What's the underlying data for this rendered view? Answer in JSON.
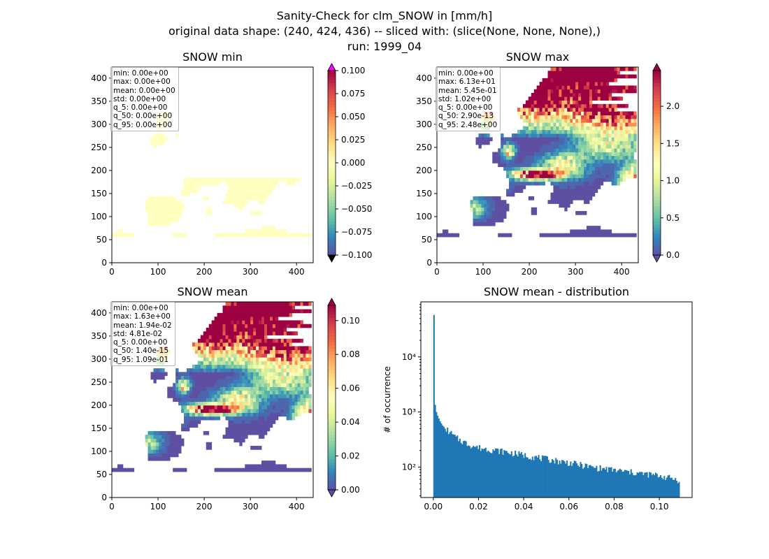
{
  "figure": {
    "suptitle_line1": "Sanity-Check for clm_SNOW in [mm/h]",
    "suptitle_line2": "original data shape: (240, 424, 436) -- sliced with: (slice(None, None, None),)",
    "suptitle_line3": "run: 1999_04"
  },
  "colors": {
    "spectral": [
      "#9e0142",
      "#d53e4f",
      "#f46d43",
      "#fdae61",
      "#fee08b",
      "#ffffbf",
      "#e6f598",
      "#abdda4",
      "#66c2a5",
      "#3288bd",
      "#5e4fa2"
    ],
    "over_min_plot": "#ff00ff",
    "under_min_plot": "#000000",
    "hist_bar": "#1f77b4"
  },
  "chart_data": [
    {
      "type": "heatmap",
      "title": "SNOW min",
      "xlim": [
        0,
        436
      ],
      "ylim": [
        0,
        424
      ],
      "xticks": [
        "0",
        "100",
        "200",
        "300",
        "400"
      ],
      "yticks": [
        "0",
        "50",
        "100",
        "150",
        "200",
        "250",
        "300",
        "350",
        "400"
      ],
      "field": "zero",
      "colorbar": {
        "vmin": -0.1,
        "vmax": 0.1,
        "extend": "both",
        "ticks": [
          "0.100",
          "0.075",
          "0.050",
          "0.025",
          "0.000",
          "−0.025",
          "−0.050",
          "−0.075",
          "−0.100"
        ]
      },
      "stats": [
        "min: 0.00e+00",
        "max: 0.00e+00",
        "mean: 0.00e+00",
        "std: 0.00e+00",
        "q_5: 0.00e+00",
        "q_50: 0.00e+00",
        "q_95: 0.00e+00"
      ]
    },
    {
      "type": "heatmap",
      "title": "SNOW max",
      "xlim": [
        0,
        436
      ],
      "ylim": [
        0,
        424
      ],
      "xticks": [
        "0",
        "100",
        "200",
        "300",
        "400"
      ],
      "yticks": [
        "0",
        "50",
        "100",
        "150",
        "200",
        "250",
        "300",
        "350",
        "400"
      ],
      "field": "max",
      "colorbar": {
        "vmin": 0.0,
        "vmax": 2.48,
        "extend": "both",
        "ticks": [
          "2.0",
          "1.5",
          "1.0",
          "0.5",
          "0.0"
        ]
      },
      "stats": [
        "min: 0.00e+00",
        "max: 6.13e+01",
        "mean: 5.45e-01",
        "std: 1.02e+00",
        "q_5: 0.00e+00",
        "q_50: 2.90e-13",
        "q_95: 2.48e+00"
      ]
    },
    {
      "type": "heatmap",
      "title": "SNOW mean",
      "xlim": [
        0,
        436
      ],
      "ylim": [
        0,
        424
      ],
      "xticks": [
        "0",
        "100",
        "200",
        "300",
        "400"
      ],
      "yticks": [
        "0",
        "50",
        "100",
        "150",
        "200",
        "250",
        "300",
        "350",
        "400"
      ],
      "field": "mean",
      "colorbar": {
        "vmin": 0.0,
        "vmax": 0.109,
        "extend": "both",
        "ticks": [
          "0.10",
          "0.08",
          "0.06",
          "0.04",
          "0.02",
          "0.00"
        ]
      },
      "stats": [
        "min: 0.00e+00",
        "max: 1.63e+00",
        "mean: 1.94e-02",
        "std: 4.81e-02",
        "q_5: 0.00e+00",
        "q_50: 1.40e-15",
        "q_95: 1.09e-01"
      ]
    },
    {
      "type": "bar",
      "title": "SNOW mean - distribution",
      "ylabel": "# of occurrence",
      "xlim": [
        -0.0055,
        0.1145
      ],
      "ylog": true,
      "ylim": [
        28,
        100000
      ],
      "xticks": [
        "0.00",
        "0.02",
        "0.04",
        "0.06",
        "0.08",
        "0.10"
      ],
      "yticks_major": [
        "10²",
        "10³",
        "10⁴"
      ],
      "bin_range": [
        0.0,
        0.109
      ],
      "bins": 200,
      "first_bin_counts": [
        58000,
        1350,
        1000,
        860,
        760,
        680,
        620,
        570,
        540,
        500
      ],
      "trend_points": [
        [
          0.003,
          620
        ],
        [
          0.005,
          520
        ],
        [
          0.01,
          340
        ],
        [
          0.015,
          265
        ],
        [
          0.02,
          225
        ],
        [
          0.03,
          195
        ],
        [
          0.04,
          165
        ],
        [
          0.05,
          140
        ],
        [
          0.06,
          120
        ],
        [
          0.07,
          100
        ],
        [
          0.08,
          88
        ],
        [
          0.09,
          78
        ],
        [
          0.1,
          70
        ],
        [
          0.109,
          58
        ]
      ]
    }
  ]
}
